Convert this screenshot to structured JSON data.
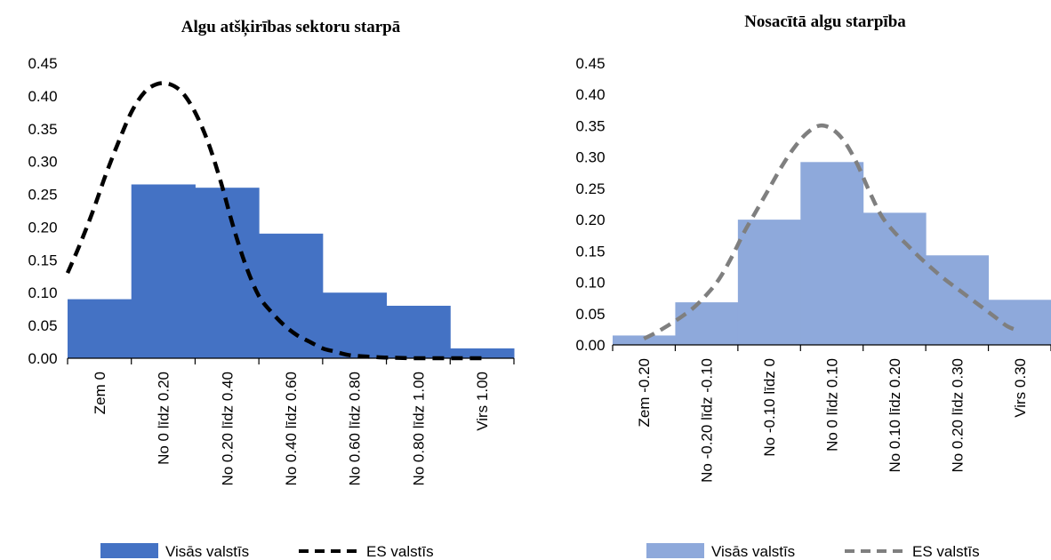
{
  "chart_data": [
    {
      "type": "bar",
      "title": "Algu atšķirības sektoru starpā",
      "categories": [
        "Zem 0",
        "No 0 līdz 0.20",
        "No 0.20 līdz 0.40",
        "No 0.40 līdz 0.60",
        "No 0.60 līdz 0.80",
        "No 0.80 līdz 1.00",
        "Virs 1.00"
      ],
      "ylim": [
        0,
        0.45
      ],
      "yticks": [
        "0.00",
        "0.05",
        "0.10",
        "0.15",
        "0.20",
        "0.25",
        "0.30",
        "0.35",
        "0.40",
        "0.45"
      ],
      "bar_series": {
        "name": "Visās valstīs",
        "values": [
          0.09,
          0.265,
          0.26,
          0.19,
          0.1,
          0.08,
          0.015
        ],
        "color": "#4472C4"
      },
      "line_series": {
        "name": "ES valstīs",
        "color": "#000000",
        "style": "dashed",
        "x": [
          -0.5,
          -0.3,
          -0.1,
          0.1,
          0.3,
          0.5,
          0.7,
          0.9,
          1.1,
          1.3,
          1.5,
          1.7,
          1.9,
          2.1,
          2.3,
          2.5,
          2.7,
          2.9,
          3.1,
          3.3,
          3.5,
          3.7,
          3.9,
          4.1,
          4.3,
          4.5,
          4.7,
          4.9,
          5.1,
          5.3,
          5.5,
          5.7,
          5.9,
          6.0
        ],
        "y": [
          0.13,
          0.175,
          0.225,
          0.28,
          0.33,
          0.375,
          0.405,
          0.418,
          0.418,
          0.405,
          0.375,
          0.33,
          0.27,
          0.2,
          0.14,
          0.095,
          0.07,
          0.05,
          0.035,
          0.025,
          0.015,
          0.01,
          0.005,
          0.003,
          0.002,
          0.001,
          0.0005,
          0.0,
          0.0,
          0.0,
          0.0,
          0.0,
          0.0,
          0.0
        ]
      },
      "legend": [
        "Visās valstīs",
        "ES valstīs"
      ],
      "legend_position": "bottom"
    },
    {
      "type": "bar",
      "title": "Nosacītā algu starpība",
      "categories": [
        "Zem -0.20",
        "No -0.20 līdz -0.10",
        "No -0.10 līdz 0",
        "No 0 līdz 0.10",
        "No 0.10 līdz 0.20",
        "No 0.20 līdz 0.30",
        "Virs 0.30"
      ],
      "ylim": [
        0,
        0.45
      ],
      "yticks": [
        "0.00",
        "0.05",
        "0.10",
        "0.15",
        "0.20",
        "0.25",
        "0.30",
        "0.35",
        "0.40",
        "0.45"
      ],
      "bar_series": {
        "name": "Visās valstīs",
        "values": [
          0.015,
          0.068,
          0.2,
          0.292,
          0.211,
          0.143,
          0.072
        ],
        "color": "#8EA9DB"
      },
      "line_series": {
        "name": "ES valstīs",
        "color": "#7F7F7F",
        "style": "dashed",
        "x": [
          0.0,
          0.2,
          0.4,
          0.6,
          0.8,
          1.0,
          1.2,
          1.4,
          1.6,
          1.8,
          2.0,
          2.2,
          2.4,
          2.6,
          2.8,
          3.0,
          3.2,
          3.4,
          3.6,
          3.8,
          4.0,
          4.2,
          4.4,
          4.6,
          4.8,
          5.0,
          5.2,
          5.4,
          5.6,
          5.8,
          6.0
        ],
        "y": [
          0.01,
          0.02,
          0.032,
          0.045,
          0.06,
          0.08,
          0.105,
          0.14,
          0.18,
          0.215,
          0.25,
          0.285,
          0.315,
          0.338,
          0.35,
          0.345,
          0.325,
          0.29,
          0.245,
          0.205,
          0.18,
          0.16,
          0.14,
          0.122,
          0.105,
          0.09,
          0.075,
          0.06,
          0.045,
          0.03,
          0.022
        ]
      },
      "legend": [
        "Visās valstīs",
        "ES valstīs"
      ],
      "legend_position": "bottom"
    }
  ]
}
